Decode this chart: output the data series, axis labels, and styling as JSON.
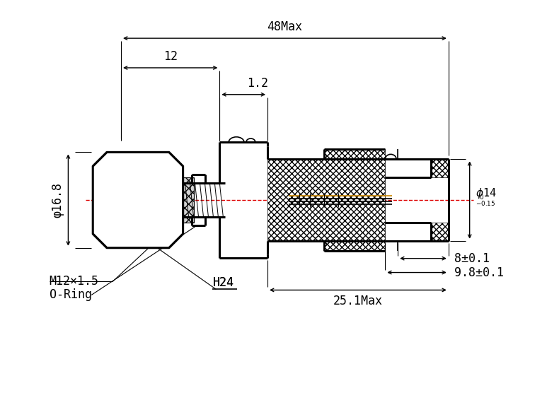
{
  "bg_color": "#ffffff",
  "line_color": "#000000",
  "annotations": {
    "dim_48max": "48Max",
    "dim_12": "12",
    "dim_1p2": "1.2",
    "dim_phi168": "φ16.8",
    "dim_phi14": "φ14",
    "dim_8pm01": "8±0.1",
    "dim_9p8pm01": "9.8±0.1",
    "dim_25p1max": "25.1Max",
    "label_m12x15": "M12×1.5",
    "label_oring": "O-Ring",
    "label_h24": "H24"
  },
  "font_size": 12
}
